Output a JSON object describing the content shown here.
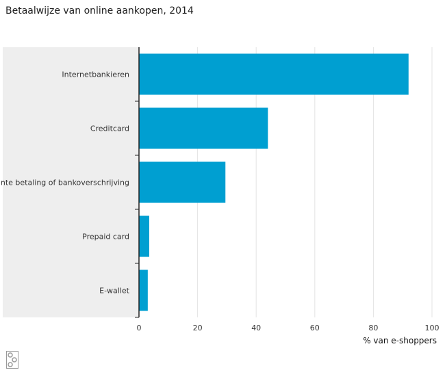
{
  "chart_data": {
    "type": "bar",
    "orientation": "horizontal",
    "title": "Betaalwijze van online aankopen, 2014",
    "categories": [
      "Internetbankieren",
      "Creditcard",
      "Contante betaling of bankoverschrijving",
      "Prepaid card",
      "E-wallet"
    ],
    "values": [
      92,
      44,
      29.5,
      3.5,
      3
    ],
    "xlabel": "% van e-shoppers",
    "ylabel": "",
    "xlim": [
      0,
      100
    ],
    "xticks": [
      0,
      20,
      40,
      60,
      80,
      100
    ],
    "grid": true,
    "legend": "none",
    "bar_color": "#009fd1",
    "label_panel_color": "#eeeeee"
  },
  "logo": {
    "icon": "cbs-logo-icon"
  }
}
